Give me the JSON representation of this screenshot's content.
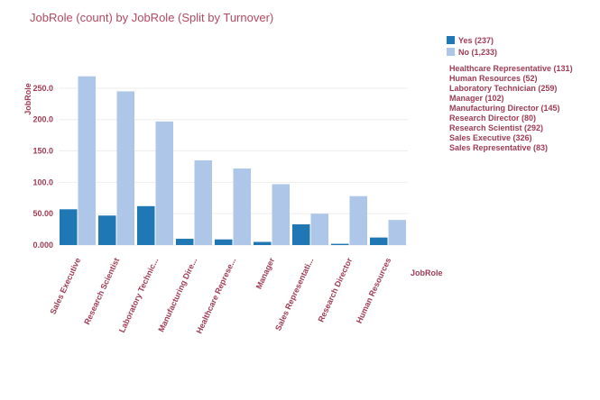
{
  "chart_data": {
    "type": "bar",
    "title": "JobRole (count) by JobRole (Split by Turnover)",
    "xlabel": "JobRole",
    "ylabel": "JobRole",
    "ylim": [
      0,
      275
    ],
    "yticks": [
      "0.000",
      "50.00",
      "100.0",
      "150.0",
      "200.0",
      "250.0"
    ],
    "ytick_values": [
      0,
      50,
      100,
      150,
      200,
      250
    ],
    "categories": [
      "Sales Executive",
      "Research Scientist",
      "Laboratory Technic...",
      "Manufacturing Dire...",
      "Healthcare Represe...",
      "Manager",
      "Sales Representati...",
      "Research Director",
      "Human Resources"
    ],
    "series": [
      {
        "name": "Yes",
        "legend": "Yes (237)",
        "color": "#1f77b4",
        "values": [
          57,
          47,
          62,
          10,
          9,
          5,
          33,
          2,
          12
        ]
      },
      {
        "name": "No",
        "legend": "No (1,233)",
        "color": "#aec7e8",
        "values": [
          269,
          245,
          197,
          135,
          122,
          97,
          50,
          78,
          40
        ]
      }
    ],
    "category_totals": [
      "Healthcare Representative (131)",
      "Human Resources (52)",
      "Laboratory Technician (259)",
      "Manager (102)",
      "Manufacturing Director (145)",
      "Research Director (80)",
      "Research Scientist (292)",
      "Sales Executive (326)",
      "Sales Representative (83)"
    ]
  },
  "colors": {
    "accent": "#b4495f",
    "label": "#a03c55"
  }
}
